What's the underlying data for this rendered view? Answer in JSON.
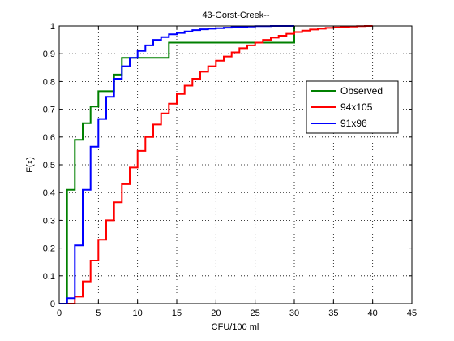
{
  "chart_data": {
    "type": "line",
    "step": true,
    "title": "43-Gorst-Creek--",
    "xlabel": "CFU/100 ml",
    "ylabel": "F(x)",
    "xlim": [
      0,
      45
    ],
    "ylim": [
      0,
      1
    ],
    "xticks": [
      0,
      5,
      10,
      15,
      20,
      25,
      30,
      35,
      40,
      45
    ],
    "yticks": [
      0,
      0.1,
      0.2,
      0.3,
      0.4,
      0.5,
      0.6,
      0.7,
      0.8,
      0.9,
      1
    ],
    "xtick_labels": [
      "0",
      "5",
      "10",
      "15",
      "20",
      "25",
      "30",
      "35",
      "40",
      "45"
    ],
    "ytick_labels": [
      "0",
      "0.1",
      "0.2",
      "0.3",
      "0.4",
      "0.5",
      "0.6",
      "0.7",
      "0.8",
      "0.9",
      "1"
    ],
    "grid": true,
    "legend_position": "right",
    "series": [
      {
        "name": "Observed",
        "color": "#008000",
        "x": [
          0,
          1,
          1,
          2,
          2,
          3,
          3,
          4,
          4,
          5,
          5,
          7,
          7,
          8,
          8,
          14,
          14,
          30,
          30
        ],
        "y": [
          0,
          0,
          0.41,
          0.41,
          0.59,
          0.59,
          0.65,
          0.65,
          0.71,
          0.71,
          0.765,
          0.765,
          0.825,
          0.825,
          0.885,
          0.885,
          0.94,
          0.94,
          1.0
        ]
      },
      {
        "name": "94x105",
        "color": "#ff0000",
        "x": [
          0,
          2,
          2,
          3,
          3,
          4,
          4,
          5,
          5,
          6,
          6,
          7,
          7,
          8,
          8,
          9,
          9,
          10,
          10,
          11,
          11,
          12,
          12,
          13,
          13,
          14,
          14,
          15,
          15,
          16,
          16,
          17,
          17,
          18,
          18,
          19,
          19,
          20,
          20,
          21,
          21,
          22,
          22,
          23,
          23,
          24,
          24,
          25,
          25,
          26,
          26,
          27,
          27,
          28,
          28,
          29,
          29,
          30,
          30,
          31,
          31,
          32,
          32,
          33,
          33,
          34,
          34,
          35,
          35,
          36,
          36,
          37,
          37,
          38,
          38,
          39,
          39,
          40
        ],
        "y": [
          0,
          0,
          0.025,
          0.025,
          0.08,
          0.08,
          0.155,
          0.155,
          0.23,
          0.23,
          0.3,
          0.3,
          0.365,
          0.365,
          0.43,
          0.43,
          0.49,
          0.49,
          0.55,
          0.55,
          0.6,
          0.6,
          0.645,
          0.645,
          0.685,
          0.685,
          0.72,
          0.72,
          0.755,
          0.755,
          0.785,
          0.785,
          0.81,
          0.81,
          0.835,
          0.835,
          0.855,
          0.855,
          0.875,
          0.875,
          0.89,
          0.89,
          0.905,
          0.905,
          0.92,
          0.92,
          0.93,
          0.93,
          0.94,
          0.94,
          0.95,
          0.95,
          0.958,
          0.958,
          0.965,
          0.965,
          0.972,
          0.972,
          0.978,
          0.978,
          0.983,
          0.983,
          0.987,
          0.987,
          0.99,
          0.99,
          0.993,
          0.993,
          0.995,
          0.995,
          0.997,
          0.997,
          0.998,
          0.998,
          0.999,
          0.999,
          1.0,
          1.0
        ]
      },
      {
        "name": "91x96",
        "color": "#0000ff",
        "x": [
          0,
          1,
          1,
          2,
          2,
          3,
          3,
          4,
          4,
          5,
          5,
          6,
          6,
          7,
          7,
          8,
          8,
          9,
          9,
          10,
          10,
          11,
          11,
          12,
          12,
          13,
          13,
          14,
          14,
          15,
          15,
          16,
          16,
          17,
          17,
          18,
          18,
          19,
          19,
          20,
          20,
          21,
          21,
          22,
          22,
          23,
          23,
          24,
          24,
          25,
          25,
          26,
          26,
          27,
          27,
          28,
          28,
          30,
          30
        ],
        "y": [
          0,
          0,
          0.02,
          0.02,
          0.21,
          0.21,
          0.41,
          0.41,
          0.565,
          0.565,
          0.665,
          0.665,
          0.745,
          0.745,
          0.81,
          0.81,
          0.855,
          0.855,
          0.885,
          0.885,
          0.91,
          0.91,
          0.93,
          0.93,
          0.95,
          0.95,
          0.96,
          0.96,
          0.97,
          0.97,
          0.975,
          0.975,
          0.98,
          0.98,
          0.985,
          0.985,
          0.988,
          0.988,
          0.99,
          0.99,
          0.992,
          0.992,
          0.994,
          0.994,
          0.996,
          0.996,
          0.997,
          0.997,
          0.998,
          0.998,
          0.999,
          0.999,
          0.999,
          0.999,
          1.0,
          1.0,
          1.0,
          1.0,
          1.0
        ]
      }
    ]
  }
}
